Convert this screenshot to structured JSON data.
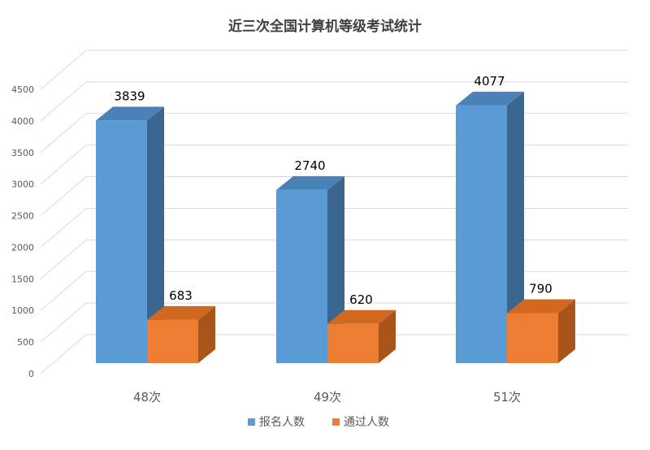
{
  "chart_data": {
    "type": "bar",
    "title": "近三次全国计算机等级考试统计",
    "categories": [
      "48次",
      "49次",
      "51次"
    ],
    "series": [
      {
        "name": "报名人数",
        "values": [
          3839,
          2740,
          4077
        ]
      },
      {
        "name": "通过人数",
        "values": [
          683,
          620,
          790
        ]
      }
    ],
    "ylim": [
      0,
      4500
    ],
    "yticks": [
      0,
      500,
      1000,
      1500,
      2000,
      2500,
      3000,
      3500,
      4000,
      4500
    ],
    "grid": true,
    "legend_position": "bottom",
    "three_d": true,
    "colors": {
      "series1_front": "#5b9bd5",
      "series1_top": "#4a82b8",
      "series1_side": "#3a6690",
      "series2_front": "#ed7d31",
      "series2_top": "#d0691f",
      "series2_side": "#a8541a",
      "grid": "#d9d9d9",
      "text": "#595959",
      "title": "#404040"
    }
  }
}
